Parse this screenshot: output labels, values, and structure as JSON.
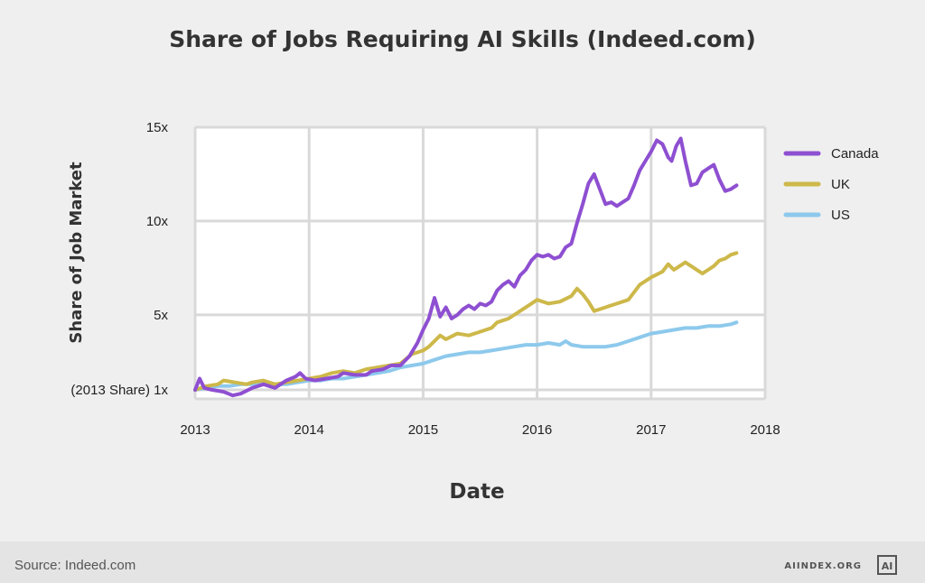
{
  "colors": {
    "canada": "#8e4fd1",
    "uk": "#cdb84a",
    "us": "#8dc9ec",
    "grid": "#d9d9d9",
    "background": "#efefef",
    "plot_background": "#ffffff"
  },
  "footer": {
    "source": "Source: Indeed.com",
    "brand": "AIINDEX.ORG",
    "logo_icon": "ai-index-logo-icon"
  },
  "chart_data": {
    "type": "line",
    "title": "Share of Jobs Requiring AI Skills (Indeed.com)",
    "xlabel": "Date",
    "ylabel": "Share of Job Market",
    "xlim": [
      2013,
      2018
    ],
    "ylim": [
      1,
      15
    ],
    "x_ticks": [
      {
        "value": 2013,
        "label": "2013"
      },
      {
        "value": 2014,
        "label": "2014"
      },
      {
        "value": 2015,
        "label": "2015"
      },
      {
        "value": 2016,
        "label": "2016"
      },
      {
        "value": 2017,
        "label": "2017"
      },
      {
        "value": 2018,
        "label": "2018"
      }
    ],
    "y_ticks": [
      {
        "value": 1,
        "label": "(2013 Share) 1x"
      },
      {
        "value": 5,
        "label": "5x"
      },
      {
        "value": 10,
        "label": "10x"
      },
      {
        "value": 15,
        "label": "15x"
      }
    ],
    "grid": true,
    "legend_position": "right",
    "series": [
      {
        "name": "Canada",
        "color": "#8e4fd1",
        "points": [
          [
            2013.0,
            1.0
          ],
          [
            2013.04,
            1.6
          ],
          [
            2013.08,
            1.1
          ],
          [
            2013.15,
            1.0
          ],
          [
            2013.25,
            0.9
          ],
          [
            2013.33,
            0.7
          ],
          [
            2013.4,
            0.8
          ],
          [
            2013.5,
            1.1
          ],
          [
            2013.6,
            1.3
          ],
          [
            2013.7,
            1.1
          ],
          [
            2013.8,
            1.5
          ],
          [
            2013.88,
            1.7
          ],
          [
            2013.92,
            1.9
          ],
          [
            2013.97,
            1.6
          ],
          [
            2014.05,
            1.5
          ],
          [
            2014.15,
            1.6
          ],
          [
            2014.25,
            1.7
          ],
          [
            2014.3,
            1.9
          ],
          [
            2014.4,
            1.8
          ],
          [
            2014.5,
            1.8
          ],
          [
            2014.55,
            2.0
          ],
          [
            2014.65,
            2.1
          ],
          [
            2014.72,
            2.3
          ],
          [
            2014.8,
            2.3
          ],
          [
            2014.88,
            2.8
          ],
          [
            2014.95,
            3.5
          ],
          [
            2015.0,
            4.2
          ],
          [
            2015.05,
            4.8
          ],
          [
            2015.1,
            5.9
          ],
          [
            2015.15,
            4.9
          ],
          [
            2015.2,
            5.4
          ],
          [
            2015.25,
            4.8
          ],
          [
            2015.3,
            5.0
          ],
          [
            2015.35,
            5.3
          ],
          [
            2015.4,
            5.5
          ],
          [
            2015.45,
            5.3
          ],
          [
            2015.5,
            5.6
          ],
          [
            2015.55,
            5.5
          ],
          [
            2015.6,
            5.7
          ],
          [
            2015.65,
            6.3
          ],
          [
            2015.7,
            6.6
          ],
          [
            2015.75,
            6.8
          ],
          [
            2015.8,
            6.5
          ],
          [
            2015.85,
            7.1
          ],
          [
            2015.9,
            7.4
          ],
          [
            2015.95,
            7.9
          ],
          [
            2016.0,
            8.2
          ],
          [
            2016.05,
            8.1
          ],
          [
            2016.1,
            8.2
          ],
          [
            2016.15,
            8.0
          ],
          [
            2016.2,
            8.1
          ],
          [
            2016.25,
            8.6
          ],
          [
            2016.3,
            8.8
          ],
          [
            2016.35,
            9.9
          ],
          [
            2016.4,
            10.9
          ],
          [
            2016.45,
            12.0
          ],
          [
            2016.5,
            12.5
          ],
          [
            2016.55,
            11.7
          ],
          [
            2016.6,
            10.9
          ],
          [
            2016.65,
            11.0
          ],
          [
            2016.7,
            10.8
          ],
          [
            2016.75,
            11.0
          ],
          [
            2016.8,
            11.2
          ],
          [
            2016.85,
            11.9
          ],
          [
            2016.9,
            12.7
          ],
          [
            2016.95,
            13.2
          ],
          [
            2017.0,
            13.7
          ],
          [
            2017.05,
            14.3
          ],
          [
            2017.1,
            14.1
          ],
          [
            2017.15,
            13.4
          ],
          [
            2017.18,
            13.2
          ],
          [
            2017.22,
            14.0
          ],
          [
            2017.26,
            14.4
          ],
          [
            2017.3,
            13.2
          ],
          [
            2017.35,
            11.9
          ],
          [
            2017.4,
            12.0
          ],
          [
            2017.45,
            12.6
          ],
          [
            2017.5,
            12.8
          ],
          [
            2017.55,
            13.0
          ],
          [
            2017.6,
            12.2
          ],
          [
            2017.65,
            11.6
          ],
          [
            2017.7,
            11.7
          ],
          [
            2017.75,
            11.9
          ]
        ]
      },
      {
        "name": "UK",
        "color": "#cdb84a",
        "points": [
          [
            2013.0,
            1.0
          ],
          [
            2013.1,
            1.2
          ],
          [
            2013.2,
            1.3
          ],
          [
            2013.25,
            1.5
          ],
          [
            2013.35,
            1.4
          ],
          [
            2013.45,
            1.3
          ],
          [
            2013.5,
            1.4
          ],
          [
            2013.6,
            1.5
          ],
          [
            2013.7,
            1.3
          ],
          [
            2013.8,
            1.4
          ],
          [
            2013.9,
            1.5
          ],
          [
            2014.0,
            1.6
          ],
          [
            2014.1,
            1.7
          ],
          [
            2014.2,
            1.9
          ],
          [
            2014.3,
            2.0
          ],
          [
            2014.4,
            1.9
          ],
          [
            2014.5,
            2.1
          ],
          [
            2014.6,
            2.2
          ],
          [
            2014.7,
            2.3
          ],
          [
            2014.8,
            2.4
          ],
          [
            2014.9,
            2.9
          ],
          [
            2015.0,
            3.1
          ],
          [
            2015.05,
            3.3
          ],
          [
            2015.15,
            3.9
          ],
          [
            2015.2,
            3.7
          ],
          [
            2015.3,
            4.0
          ],
          [
            2015.4,
            3.9
          ],
          [
            2015.5,
            4.1
          ],
          [
            2015.6,
            4.3
          ],
          [
            2015.65,
            4.6
          ],
          [
            2015.75,
            4.8
          ],
          [
            2015.85,
            5.2
          ],
          [
            2015.95,
            5.6
          ],
          [
            2016.0,
            5.8
          ],
          [
            2016.1,
            5.6
          ],
          [
            2016.2,
            5.7
          ],
          [
            2016.3,
            6.0
          ],
          [
            2016.35,
            6.4
          ],
          [
            2016.4,
            6.1
          ],
          [
            2016.45,
            5.7
          ],
          [
            2016.5,
            5.2
          ],
          [
            2016.55,
            5.3
          ],
          [
            2016.6,
            5.4
          ],
          [
            2016.7,
            5.6
          ],
          [
            2016.8,
            5.8
          ],
          [
            2016.9,
            6.6
          ],
          [
            2017.0,
            7.0
          ],
          [
            2017.1,
            7.3
          ],
          [
            2017.15,
            7.7
          ],
          [
            2017.2,
            7.4
          ],
          [
            2017.25,
            7.6
          ],
          [
            2017.3,
            7.8
          ],
          [
            2017.35,
            7.6
          ],
          [
            2017.45,
            7.2
          ],
          [
            2017.5,
            7.4
          ],
          [
            2017.55,
            7.6
          ],
          [
            2017.6,
            7.9
          ],
          [
            2017.65,
            8.0
          ],
          [
            2017.7,
            8.2
          ],
          [
            2017.75,
            8.3
          ]
        ]
      },
      {
        "name": "US",
        "color": "#8dc9ec",
        "points": [
          [
            2013.0,
            1.0
          ],
          [
            2013.1,
            1.1
          ],
          [
            2013.2,
            1.2
          ],
          [
            2013.3,
            1.2
          ],
          [
            2013.4,
            1.3
          ],
          [
            2013.5,
            1.3
          ],
          [
            2013.6,
            1.4
          ],
          [
            2013.7,
            1.3
          ],
          [
            2013.8,
            1.3
          ],
          [
            2013.9,
            1.4
          ],
          [
            2014.0,
            1.5
          ],
          [
            2014.1,
            1.5
          ],
          [
            2014.2,
            1.6
          ],
          [
            2014.3,
            1.6
          ],
          [
            2014.4,
            1.7
          ],
          [
            2014.5,
            1.8
          ],
          [
            2014.6,
            1.9
          ],
          [
            2014.7,
            2.0
          ],
          [
            2014.8,
            2.2
          ],
          [
            2014.9,
            2.3
          ],
          [
            2015.0,
            2.4
          ],
          [
            2015.1,
            2.6
          ],
          [
            2015.2,
            2.8
          ],
          [
            2015.3,
            2.9
          ],
          [
            2015.4,
            3.0
          ],
          [
            2015.5,
            3.0
          ],
          [
            2015.6,
            3.1
          ],
          [
            2015.7,
            3.2
          ],
          [
            2015.8,
            3.3
          ],
          [
            2015.9,
            3.4
          ],
          [
            2016.0,
            3.4
          ],
          [
            2016.1,
            3.5
          ],
          [
            2016.2,
            3.4
          ],
          [
            2016.25,
            3.6
          ],
          [
            2016.3,
            3.4
          ],
          [
            2016.4,
            3.3
          ],
          [
            2016.5,
            3.3
          ],
          [
            2016.6,
            3.3
          ],
          [
            2016.7,
            3.4
          ],
          [
            2016.8,
            3.6
          ],
          [
            2016.9,
            3.8
          ],
          [
            2017.0,
            4.0
          ],
          [
            2017.1,
            4.1
          ],
          [
            2017.2,
            4.2
          ],
          [
            2017.3,
            4.3
          ],
          [
            2017.4,
            4.3
          ],
          [
            2017.5,
            4.4
          ],
          [
            2017.6,
            4.4
          ],
          [
            2017.7,
            4.5
          ],
          [
            2017.75,
            4.6
          ]
        ]
      }
    ]
  }
}
